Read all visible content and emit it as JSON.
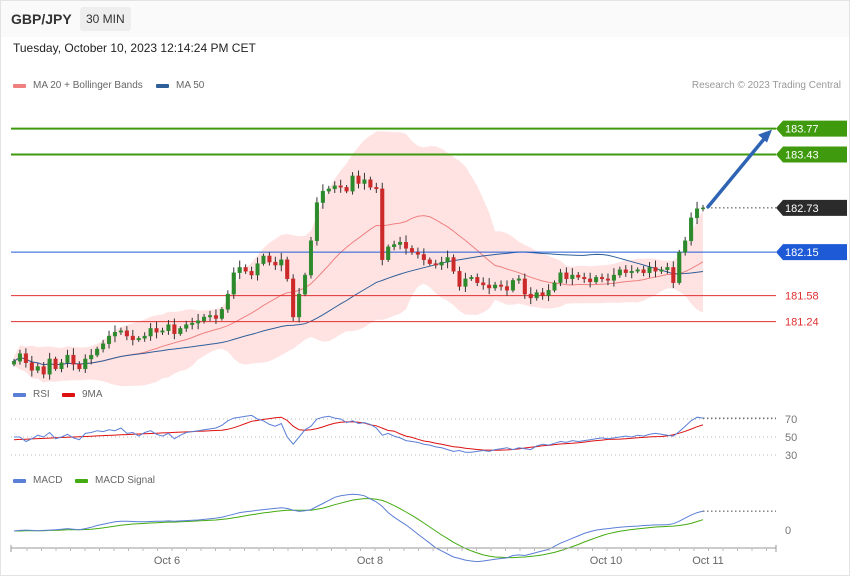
{
  "header": {
    "symbol": "GBP/JPY",
    "timeframe": "30 MIN"
  },
  "timestamp": "Tuesday, October 10, 2023 12:14:24 PM CET",
  "legend": {
    "ma20": {
      "label": "MA 20 + Bollinger Bands",
      "color": "#f08080"
    },
    "ma50": {
      "label": "MA 50",
      "color": "#2f5f99"
    },
    "rsi": {
      "label": "RSI",
      "color": "#5b7fd6"
    },
    "rsi_ma": {
      "label": "9MA",
      "color": "#dd1111"
    },
    "macd": {
      "label": "MACD",
      "color": "#5b7fd6"
    },
    "macd_signal": {
      "label": "MACD Signal",
      "color": "#44aa11"
    }
  },
  "copyright": "Research © 2023 Trading Central",
  "chart_data": [
    {
      "type": "candlestick",
      "panel": "price",
      "y_range": [
        180.5,
        184.25
      ],
      "levels": [
        {
          "value": 183.77,
          "label": "183.77",
          "kind": "resistance",
          "color": "#3f9a0e"
        },
        {
          "value": 183.43,
          "label": "183.43",
          "kind": "resistance",
          "color": "#3f9a0e"
        },
        {
          "value": 182.73,
          "label": "182.73",
          "kind": "last_price",
          "color": "#2b2b2b"
        },
        {
          "value": 182.15,
          "label": "182.15",
          "kind": "pivot",
          "color": "#1e5ad6"
        },
        {
          "value": 181.58,
          "label": "181.58",
          "kind": "support",
          "color": "#e03030"
        },
        {
          "value": 181.24,
          "label": "181.24",
          "kind": "support",
          "color": "#e03030"
        }
      ],
      "projection": {
        "from": 182.73,
        "to": 183.77
      },
      "x_ticks": [
        "Oct 6",
        "Oct 8",
        "Oct 10",
        "Oct 11"
      ],
      "close": [
        180.72,
        180.82,
        180.7,
        180.6,
        180.65,
        180.55,
        180.75,
        180.62,
        180.7,
        180.8,
        180.68,
        180.62,
        180.75,
        180.8,
        180.88,
        180.95,
        181.05,
        181.1,
        181.12,
        181.05,
        181.0,
        181.02,
        181.05,
        181.15,
        181.1,
        181.12,
        181.2,
        181.08,
        181.15,
        181.2,
        181.22,
        181.25,
        181.3,
        181.32,
        181.28,
        181.4,
        181.6,
        181.88,
        181.95,
        181.9,
        181.85,
        182.0,
        182.1,
        182.02,
        181.98,
        182.05,
        181.8,
        181.3,
        181.6,
        181.85,
        182.3,
        182.8,
        182.95,
        182.98,
        183.02,
        183.0,
        182.95,
        183.15,
        183.05,
        183.1,
        183.0,
        182.98,
        182.05,
        182.22,
        182.25,
        182.28,
        182.2,
        182.15,
        182.12,
        182.05,
        182.0,
        181.98,
        182.02,
        182.08,
        181.9,
        181.7,
        181.8,
        181.82,
        181.75,
        181.72,
        181.68,
        181.72,
        181.7,
        181.65,
        181.78,
        181.8,
        181.6,
        181.55,
        181.62,
        181.58,
        181.65,
        181.75,
        181.88,
        181.8,
        181.85,
        181.82,
        181.8,
        181.76,
        181.82,
        181.8,
        181.78,
        181.85,
        181.92,
        181.88,
        181.9,
        181.92,
        181.88,
        181.95,
        181.9,
        181.92,
        181.95,
        181.75,
        182.15,
        182.3,
        182.6,
        182.72,
        182.73
      ]
    },
    {
      "type": "line",
      "panel": "rsi",
      "ticks": [
        70,
        50,
        30
      ],
      "series": [
        {
          "name": "RSI",
          "values": [
            50,
            50,
            45,
            48,
            52,
            50,
            55,
            48,
            50,
            53,
            49,
            47,
            54,
            55,
            57,
            56,
            58,
            57,
            60,
            54,
            55,
            51,
            55,
            57,
            53,
            51,
            54,
            48,
            52,
            55,
            56,
            57,
            58,
            59,
            60,
            63,
            68,
            71,
            72,
            73,
            74,
            70,
            68,
            64,
            62,
            65,
            50,
            42,
            50,
            58,
            62,
            70,
            72,
            73,
            71,
            70,
            66,
            68,
            65,
            66,
            64,
            60,
            52,
            54,
            51,
            49,
            46,
            45,
            44,
            42,
            41,
            39,
            38,
            36,
            34,
            35,
            33,
            33,
            34,
            35,
            34,
            36,
            37,
            38,
            36,
            38,
            37,
            36,
            40,
            42,
            41,
            43,
            45,
            44,
            46,
            45,
            46,
            47,
            48,
            49,
            48,
            49,
            50,
            51,
            50,
            52,
            51,
            53,
            54,
            53,
            52,
            51,
            56,
            62,
            68,
            72,
            71
          ]
        },
        {
          "name": "9MA",
          "values": [
            47,
            47.3,
            47.6,
            47.9,
            48.2,
            48.5,
            48.8,
            49.1,
            49.4,
            49.7,
            50,
            50.3,
            50.6,
            50.9,
            51.2,
            51.5,
            51.8,
            52.1,
            52.4,
            52.7,
            53,
            53.3,
            53.6,
            53.9,
            54.2,
            54.5,
            54.8,
            55.1,
            55.4,
            55.7,
            56,
            56.3,
            56.6,
            56.9,
            57.2,
            57.5,
            58.6,
            60.3,
            62.6,
            65,
            67.4,
            68.5,
            69.5,
            70.5,
            71.4,
            72,
            68.3,
            62,
            58,
            57.5,
            58.1,
            59.3,
            61.2,
            63.5,
            65.2,
            66.3,
            66.8,
            67,
            66.4,
            65.6,
            63.4,
            62.5,
            59.9,
            57.2,
            56.5,
            53.5,
            51,
            49.5,
            47.5,
            45.6,
            44.5,
            43.1,
            42,
            40.6,
            39.2,
            38.6,
            37.5,
            36.8,
            36.1,
            35.6,
            35.4,
            35.3,
            35.4,
            35.7,
            36.1,
            36.8,
            37.8,
            38.6,
            39.3,
            40.2,
            40.7,
            41.6,
            42.2,
            42.7,
            43,
            43.6,
            44.3,
            45.2,
            46,
            46.5,
            47.3,
            47.4,
            47.7,
            48.1,
            48.6,
            49.2,
            49.6,
            50.1,
            50.4,
            50.6,
            51.2,
            52.6,
            54.2,
            56.3,
            58.8,
            61.4,
            63.4
          ]
        }
      ]
    },
    {
      "type": "line",
      "panel": "macd",
      "ticks": [
        0
      ],
      "series": [
        {
          "name": "MACD",
          "values": [
            0.0,
            0.002,
            0.003,
            0.002,
            0.001,
            0.002,
            0.003,
            0.004,
            0.006,
            0.008,
            0.006,
            0.004,
            0.008,
            0.012,
            0.018,
            0.022,
            0.026,
            0.03,
            0.032,
            0.032,
            0.031,
            0.03,
            0.03,
            0.031,
            0.032,
            0.032,
            0.033,
            0.032,
            0.033,
            0.034,
            0.035,
            0.036,
            0.038,
            0.04,
            0.042,
            0.045,
            0.05,
            0.055,
            0.06,
            0.063,
            0.065,
            0.068,
            0.07,
            0.072,
            0.074,
            0.076,
            0.074,
            0.068,
            0.064,
            0.066,
            0.07,
            0.08,
            0.09,
            0.1,
            0.11,
            0.115,
            0.118,
            0.12,
            0.119,
            0.115,
            0.105,
            0.095,
            0.08,
            0.06,
            0.045,
            0.032,
            0.02,
            0.005,
            -0.01,
            -0.025,
            -0.04,
            -0.055,
            -0.065,
            -0.075,
            -0.085,
            -0.09,
            -0.095,
            -0.098,
            -0.1,
            -0.098,
            -0.095,
            -0.092,
            -0.09,
            -0.088,
            -0.08,
            -0.078,
            -0.08,
            -0.075,
            -0.07,
            -0.065,
            -0.06,
            -0.05,
            -0.04,
            -0.032,
            -0.024,
            -0.016,
            -0.008,
            -0.002,
            0.003,
            0.006,
            0.008,
            0.01,
            0.012,
            0.014,
            0.015,
            0.016,
            0.018,
            0.019,
            0.02,
            0.02,
            0.021,
            0.024,
            0.032,
            0.042,
            0.052,
            0.06,
            0.065
          ]
        },
        {
          "name": "MACD Signal",
          "values": [
            0.0,
            0.0,
            0.001,
            0.001,
            0.001,
            0.001,
            0.002,
            0.002,
            0.003,
            0.004,
            0.004,
            0.004,
            0.005,
            0.006,
            0.008,
            0.01,
            0.013,
            0.016,
            0.019,
            0.021,
            0.023,
            0.024,
            0.025,
            0.026,
            0.027,
            0.028,
            0.029,
            0.029,
            0.03,
            0.031,
            0.032,
            0.033,
            0.034,
            0.035,
            0.036,
            0.038,
            0.04,
            0.043,
            0.046,
            0.05,
            0.053,
            0.056,
            0.059,
            0.061,
            0.064,
            0.066,
            0.068,
            0.068,
            0.068,
            0.068,
            0.068,
            0.071,
            0.075,
            0.08,
            0.086,
            0.091,
            0.096,
            0.101,
            0.104,
            0.106,
            0.106,
            0.104,
            0.1,
            0.092,
            0.083,
            0.073,
            0.062,
            0.051,
            0.039,
            0.026,
            0.013,
            0.0,
            -0.013,
            -0.025,
            -0.037,
            -0.047,
            -0.057,
            -0.065,
            -0.072,
            -0.078,
            -0.082,
            -0.085,
            -0.086,
            -0.087,
            -0.087,
            -0.086,
            -0.085,
            -0.083,
            -0.081,
            -0.078,
            -0.074,
            -0.07,
            -0.064,
            -0.058,
            -0.051,
            -0.044,
            -0.036,
            -0.029,
            -0.022,
            -0.015,
            -0.009,
            -0.005,
            -0.001,
            0.002,
            0.005,
            0.007,
            0.009,
            0.011,
            0.013,
            0.014,
            0.015,
            0.016,
            0.018,
            0.021,
            0.025,
            0.031,
            0.037
          ]
        }
      ]
    }
  ]
}
